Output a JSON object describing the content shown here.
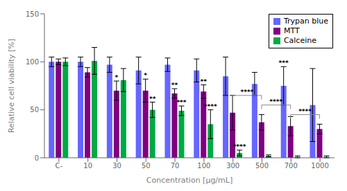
{
  "chart_data": {
    "type": "bar",
    "xlabel": "Concentration [µg/mL]",
    "ylabel": "Relative cell viability [%]",
    "categories": [
      "C-",
      "10",
      "30",
      "50",
      "70",
      "100",
      "300",
      "500",
      "700",
      "1000"
    ],
    "series": [
      {
        "name": "Trypan blue",
        "color": "#6666FF",
        "values": [
          100,
          100,
          97,
          91,
          97,
          91,
          85,
          77,
          75,
          55
        ],
        "errors": [
          5,
          5,
          8,
          14,
          7,
          12,
          20,
          12,
          20,
          38
        ]
      },
      {
        "name": "MTT",
        "color": "#800080",
        "values": [
          100,
          89,
          70,
          70,
          67,
          69,
          47,
          37,
          33,
          30
        ],
        "errors": [
          3,
          5,
          10,
          12,
          5,
          7,
          18,
          8,
          10,
          5
        ]
      },
      {
        "name": "Calceine",
        "color": "#00AA44",
        "values": [
          100,
          101,
          81,
          50,
          49,
          35,
          5,
          2,
          1,
          1
        ],
        "errors": [
          4,
          14,
          12,
          8,
          5,
          15,
          3,
          1,
          1,
          1
        ]
      }
    ],
    "annotations": [
      {
        "text": "*",
        "category": "30",
        "series": "MTT"
      },
      {
        "text": "*",
        "category": "50",
        "series": "MTT"
      },
      {
        "text": "**",
        "category": "50",
        "series": "Calceine"
      },
      {
        "text": "**",
        "category": "70",
        "series": "MTT"
      },
      {
        "text": "***",
        "category": "70",
        "series": "Calceine"
      },
      {
        "text": "**",
        "category": "100",
        "series": "MTT"
      },
      {
        "text": "****",
        "category": "100",
        "series": "Calceine"
      },
      {
        "text": "***",
        "category": "700",
        "series": "Trypan blue"
      },
      {
        "text": "****",
        "category": "300",
        "series": "Calceine"
      }
    ],
    "brackets": [
      {
        "text": "****",
        "from": "300",
        "to": "500",
        "y": 65
      },
      {
        "text": "****",
        "from": "500",
        "to": "700",
        "y": 55
      },
      {
        "text": "****",
        "from": "700",
        "to": "1000",
        "y": 45
      }
    ],
    "ylim": [
      0,
      150
    ],
    "yticks": [
      0,
      50,
      100,
      150
    ],
    "grid": false,
    "legend": "upper right"
  }
}
